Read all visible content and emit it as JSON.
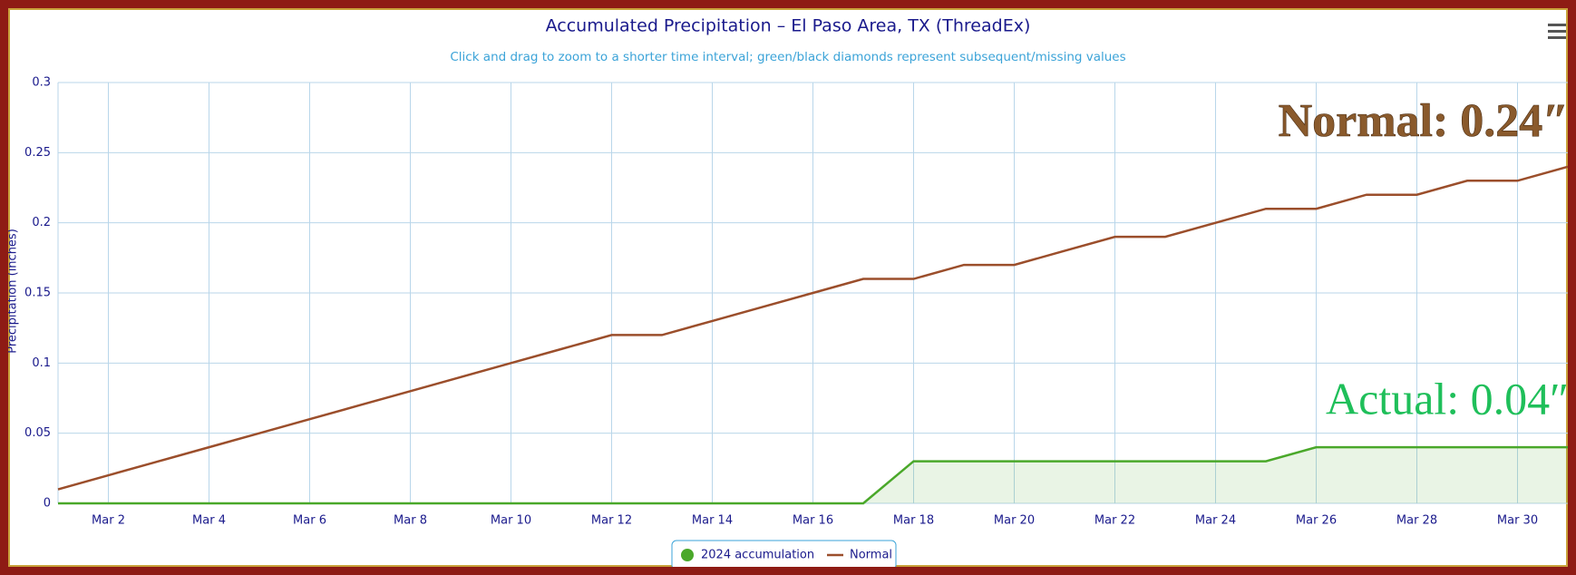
{
  "chart_data": {
    "type": "line",
    "title": "Accumulated Precipitation – El Paso Area, TX (ThreadEx)",
    "subtitle": "Click and drag to zoom to a shorter time interval; green/black diamonds represent subsequent/missing values",
    "y_label": "Precipitation (inches)",
    "categories": [
      null,
      "Mar 2",
      null,
      "Mar 4",
      null,
      "Mar 6",
      null,
      "Mar 8",
      null,
      "Mar 10",
      null,
      "Mar 12",
      null,
      "Mar 14",
      null,
      "Mar 16",
      null,
      "Mar 18",
      null,
      "Mar 20",
      null,
      "Mar 22",
      null,
      "Mar 24",
      null,
      "Mar 26",
      null,
      "Mar 28",
      null,
      "Mar 30",
      null
    ],
    "series": [
      {
        "name": "2024 accumulation",
        "color": "#4aa82a",
        "area": true,
        "values": [
          0,
          0,
          0,
          0,
          0,
          0,
          0,
          0,
          0,
          0,
          0,
          0,
          0,
          0,
          0,
          0,
          0,
          0.03,
          0.03,
          0.03,
          0.03,
          0.03,
          0.03,
          0.03,
          0.03,
          0.04,
          0.04,
          0.04,
          0.04,
          0.04,
          0.04
        ]
      },
      {
        "name": "Normal",
        "color": "#9b4e2b",
        "values": [
          0.01,
          0.02,
          0.03,
          0.04,
          0.05,
          0.06,
          0.07,
          0.08,
          0.09,
          0.1,
          0.11,
          0.12,
          0.12,
          0.13,
          0.14,
          0.15,
          0.16,
          0.16,
          0.17,
          0.17,
          0.18,
          0.19,
          0.19,
          0.2,
          0.21,
          0.21,
          0.22,
          0.22,
          0.23,
          0.23,
          0.24
        ]
      }
    ],
    "annotations": [
      "Normal: 0.24″",
      "Actual: 0.04″"
    ],
    "ylim": [
      0,
      0.3
    ],
    "yticks": [
      0,
      0.05,
      0.1,
      0.15,
      0.2,
      0.25,
      0.3
    ],
    "grid": true
  }
}
